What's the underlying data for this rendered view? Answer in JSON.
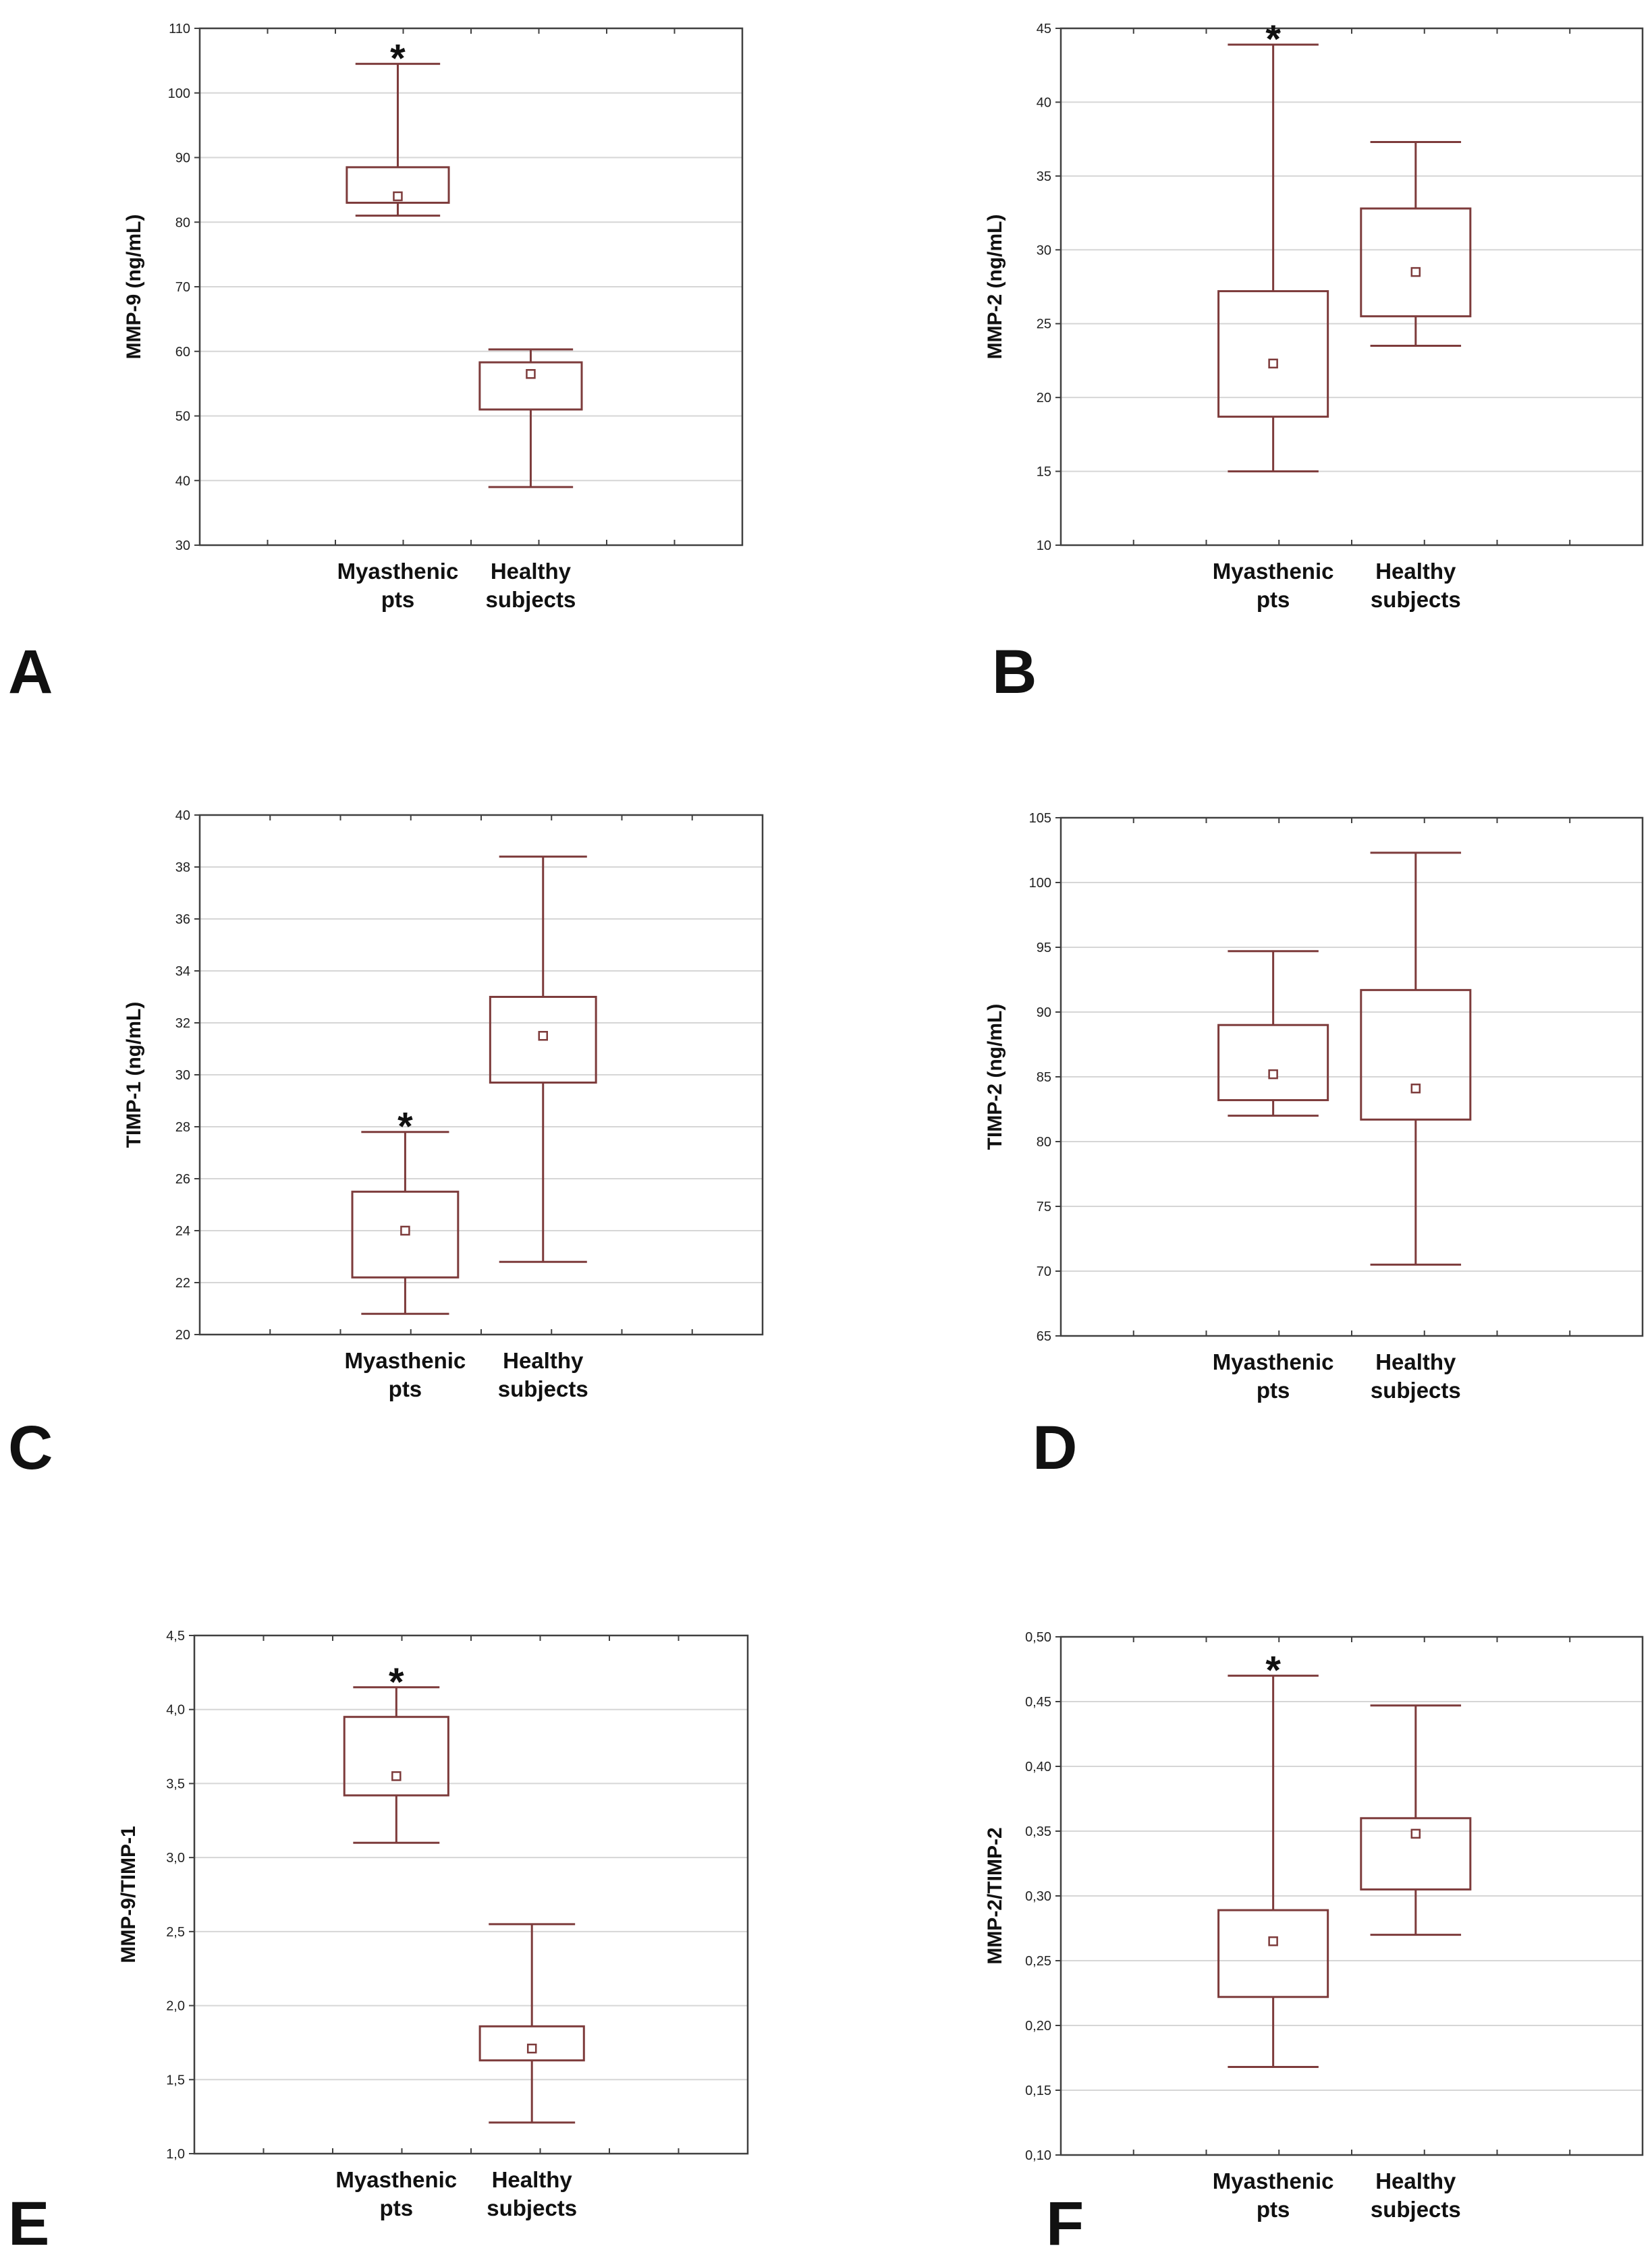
{
  "style": {
    "box_color": "#7d3b3b",
    "frame_color": "#404040",
    "grid_color": "#d6d6d6",
    "text_color": "#111111"
  },
  "chart_data": [
    {
      "panel": "A",
      "type": "box",
      "ylabel": "MMP-9 (ng/mL)",
      "ylim": [
        30,
        110
      ],
      "yticks": [
        "30",
        "40",
        "50",
        "60",
        "70",
        "80",
        "90",
        "100",
        "110"
      ],
      "categories": [
        [
          "Myasthenic",
          "pts"
        ],
        [
          "Healthy",
          "subjects"
        ]
      ],
      "groups": [
        {
          "min": 81,
          "q1": 83,
          "mean": 84,
          "q3": 88.5,
          "max": 104.5,
          "star": "*"
        },
        {
          "min": 39,
          "q1": 51,
          "mean": 56.5,
          "q3": 58.3,
          "max": 60.3,
          "star": ""
        }
      ]
    },
    {
      "panel": "B",
      "type": "box",
      "ylabel": "MMP-2 (ng/mL)",
      "ylim": [
        10,
        45
      ],
      "yticks": [
        "10",
        "15",
        "20",
        "25",
        "30",
        "35",
        "40",
        "45"
      ],
      "categories": [
        [
          "Myasthenic",
          "pts"
        ],
        [
          "Healthy",
          "subjects"
        ]
      ],
      "groups": [
        {
          "min": 15,
          "q1": 18.7,
          "mean": 22.3,
          "q3": 27.2,
          "max": 43.9,
          "star": "*"
        },
        {
          "min": 23.5,
          "q1": 25.5,
          "mean": 28.5,
          "q3": 32.8,
          "max": 37.3,
          "star": ""
        }
      ]
    },
    {
      "panel": "C",
      "type": "box",
      "ylabel": "TIMP-1 (ng/mL)",
      "ylim": [
        20,
        40
      ],
      "yticks": [
        "20",
        "22",
        "24",
        "26",
        "28",
        "30",
        "32",
        "34",
        "36",
        "38",
        "40"
      ],
      "categories": [
        [
          "Myasthenic",
          "pts"
        ],
        [
          "Healthy",
          "subjects"
        ]
      ],
      "groups": [
        {
          "min": 20.8,
          "q1": 22.2,
          "mean": 24,
          "q3": 25.5,
          "max": 27.8,
          "star": "*"
        },
        {
          "min": 22.8,
          "q1": 29.7,
          "mean": 31.5,
          "q3": 33,
          "max": 38.4,
          "star": ""
        }
      ]
    },
    {
      "panel": "D",
      "type": "box",
      "ylabel": "TIMP-2 (ng/mL)",
      "ylim": [
        65,
        105
      ],
      "yticks": [
        "65",
        "70",
        "75",
        "80",
        "85",
        "90",
        "95",
        "100",
        "105"
      ],
      "categories": [
        [
          "Myasthenic",
          "pts"
        ],
        [
          "Healthy",
          "subjects"
        ]
      ],
      "groups": [
        {
          "min": 82,
          "q1": 83.2,
          "mean": 85.2,
          "q3": 89,
          "max": 94.7,
          "star": ""
        },
        {
          "min": 70.5,
          "q1": 81.7,
          "mean": 84.1,
          "q3": 91.7,
          "max": 102.3,
          "star": ""
        }
      ]
    },
    {
      "panel": "E",
      "type": "box",
      "ylabel": "MMP-9/TIMP-1",
      "ylim": [
        1.0,
        4.5
      ],
      "yticks": [
        "1,0",
        "1,5",
        "2,0",
        "2,5",
        "3,0",
        "3,5",
        "4,0",
        "4,5"
      ],
      "categories": [
        [
          "Myasthenic",
          "pts"
        ],
        [
          "Healthy",
          "subjects"
        ]
      ],
      "groups": [
        {
          "min": 3.1,
          "q1": 3.42,
          "mean": 3.55,
          "q3": 3.95,
          "max": 4.15,
          "star": "*"
        },
        {
          "min": 1.21,
          "q1": 1.63,
          "mean": 1.71,
          "q3": 1.86,
          "max": 2.55,
          "star": ""
        }
      ]
    },
    {
      "panel": "F",
      "type": "box",
      "ylabel": "MMP-2/TIMP-2",
      "ylim": [
        0.1,
        0.5
      ],
      "yticks": [
        "0,10",
        "0,15",
        "0,20",
        "0,25",
        "0,30",
        "0,35",
        "0,40",
        "0,45",
        "0,50"
      ],
      "categories": [
        [
          "Myasthenic",
          "pts"
        ],
        [
          "Healthy",
          "subjects"
        ]
      ],
      "groups": [
        {
          "min": 0.168,
          "q1": 0.222,
          "mean": 0.265,
          "q3": 0.289,
          "max": 0.47,
          "star": "*"
        },
        {
          "min": 0.27,
          "q1": 0.305,
          "mean": 0.348,
          "q3": 0.36,
          "max": 0.447,
          "star": ""
        }
      ]
    }
  ]
}
